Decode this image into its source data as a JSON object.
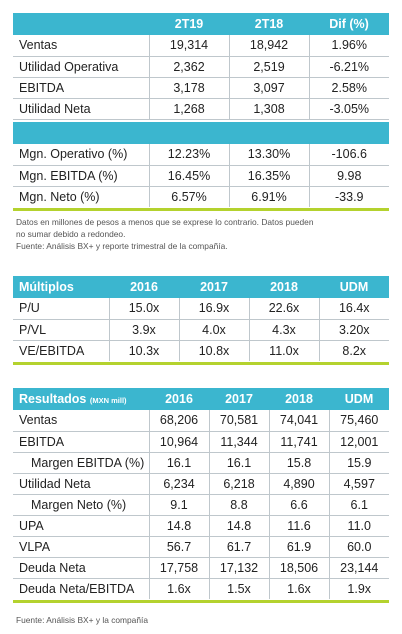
{
  "quarterly": {
    "headers": [
      "",
      "2T19",
      "2T18",
      "Dif (%)"
    ],
    "rows": [
      {
        "label": "Ventas",
        "values": [
          "19,314",
          "18,942",
          "1.96%"
        ]
      },
      {
        "label": "Utilidad Operativa",
        "values": [
          "2,362",
          "2,519",
          "-6.21%"
        ]
      },
      {
        "label": "EBITDA",
        "values": [
          "3,178",
          "3,097",
          "2.58%"
        ]
      },
      {
        "label": "Utilidad Neta",
        "values": [
          "1,268",
          "1,308",
          "-3.05%"
        ]
      }
    ],
    "margin_rows": [
      {
        "label": "Mgn. Operativo (%)",
        "values": [
          "12.23%",
          "13.30%",
          "-106.6"
        ]
      },
      {
        "label": "Mgn. EBITDA (%)",
        "values": [
          "16.45%",
          "16.35%",
          "9.98"
        ]
      },
      {
        "label": "Mgn. Neto (%)",
        "values": [
          "6.57%",
          "6.91%",
          "-33.9"
        ]
      }
    ],
    "note_line1": "Datos en millones de pesos a menos que se exprese lo contrario. Datos pueden",
    "note_line2": "no sumar debido a redondeo.",
    "source": "Fuente: Análisis BX+ y reporte trimestral de la compañía."
  },
  "multiples": {
    "headers": [
      "Múltiplos",
      "2016",
      "2017",
      "2018",
      "UDM"
    ],
    "rows": [
      {
        "label": "P/U",
        "values": [
          "15.0x",
          "16.9x",
          "22.6x",
          "16.4x"
        ]
      },
      {
        "label": "P/VL",
        "values": [
          "3.9x",
          "4.0x",
          "4.3x",
          "3.20x"
        ]
      },
      {
        "label": "VE/EBITDA",
        "values": [
          "10.3x",
          "10.8x",
          "11.0x",
          "8.2x"
        ]
      }
    ]
  },
  "results": {
    "header_label": "Resultados",
    "header_unit": "(MXN mill)",
    "headers": [
      "2016",
      "2017",
      "2018",
      "UDM"
    ],
    "rows": [
      {
        "label": "Ventas",
        "values": [
          "68,206",
          "70,581",
          "74,041",
          "75,460"
        ]
      },
      {
        "label": "EBITDA",
        "values": [
          "10,964",
          "11,344",
          "11,741",
          "12,001"
        ]
      },
      {
        "label": "Margen EBITDA (%)",
        "values": [
          "16.1",
          "16.1",
          "15.8",
          "15.9"
        ]
      },
      {
        "label": "Utilidad Neta",
        "values": [
          "6,234",
          "6,218",
          "4,890",
          "4,597"
        ]
      },
      {
        "label": "Margen Neto (%)",
        "values": [
          "9.1",
          "8.8",
          "6.6",
          "6.1"
        ]
      },
      {
        "label": "UPA",
        "values": [
          "14.8",
          "14.8",
          "11.6",
          "11.0"
        ]
      },
      {
        "label": "VLPA",
        "values": [
          "56.7",
          "61.7",
          "61.9",
          "60.0"
        ]
      },
      {
        "label": "Deuda Neta",
        "values": [
          "17,758",
          "17,132",
          "18,506",
          "23,144"
        ]
      },
      {
        "label": "Deuda Neta/EBITDA",
        "values": [
          "1.6x",
          "1.5x",
          "1.6x",
          "1.9x"
        ]
      }
    ],
    "source": "Fuente: Análisis BX+ y la compañía"
  },
  "colors": {
    "header": "#3bb6cf",
    "accent_line": "#b4d22e"
  }
}
